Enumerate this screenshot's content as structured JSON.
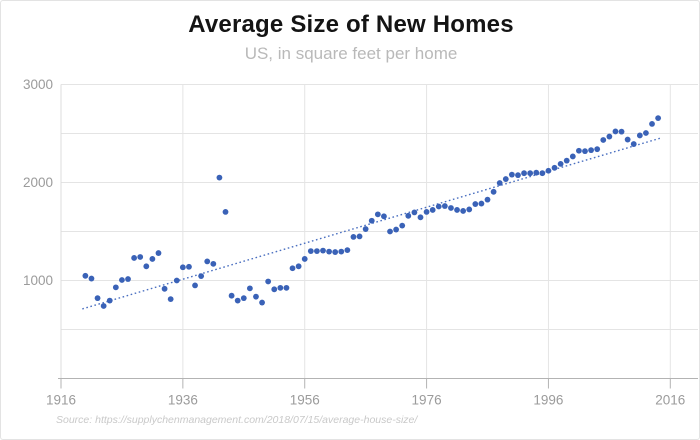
{
  "header": {
    "title": "Average Size of New Homes",
    "subtitle": "US, in square feet per home"
  },
  "footer": {
    "source": "Source: https://supplychenmanagement.com/2018/07/15/average-house-size/"
  },
  "chart_data": {
    "type": "scatter",
    "title": "Average Size of New Homes",
    "subtitle": "US, in square feet per home",
    "xlabel": "",
    "ylabel": "",
    "x_ticks": [
      1916,
      1936,
      1956,
      1976,
      1996,
      2016
    ],
    "y_ticks": [
      1000,
      2000,
      3000
    ],
    "x_range": [
      1916,
      2020.5
    ],
    "y_range": [
      0,
      3000
    ],
    "grid_step_y": 500,
    "grid_on": true,
    "legend": "none",
    "colors": {
      "point": "#3a62b7",
      "trend": "#4a6fc0",
      "grid": "#e4e4e4",
      "axis": "#b3b3b3",
      "tick_label": "#9b9b9b"
    },
    "trendline": {
      "style": "dotted",
      "x1": 1919.5,
      "y1": 710,
      "x2": 2014.5,
      "y2": 2455
    },
    "points": [
      [
        1920,
        1048
      ],
      [
        1921,
        1020
      ],
      [
        1922,
        820
      ],
      [
        1923,
        740
      ],
      [
        1924,
        795
      ],
      [
        1925,
        930
      ],
      [
        1926,
        1005
      ],
      [
        1927,
        1015
      ],
      [
        1928,
        1230
      ],
      [
        1929,
        1240
      ],
      [
        1930,
        1145
      ],
      [
        1931,
        1220
      ],
      [
        1932,
        1280
      ],
      [
        1933,
        915
      ],
      [
        1934,
        810
      ],
      [
        1935,
        1000
      ],
      [
        1936,
        1135
      ],
      [
        1937,
        1140
      ],
      [
        1938,
        950
      ],
      [
        1939,
        1045
      ],
      [
        1940,
        1195
      ],
      [
        1941,
        1170
      ],
      [
        1942,
        2050
      ],
      [
        1943,
        1700
      ],
      [
        1944,
        845
      ],
      [
        1945,
        795
      ],
      [
        1946,
        820
      ],
      [
        1947,
        920
      ],
      [
        1948,
        835
      ],
      [
        1949,
        775
      ],
      [
        1950,
        990
      ],
      [
        1951,
        910
      ],
      [
        1952,
        925
      ],
      [
        1953,
        925
      ],
      [
        1954,
        1125
      ],
      [
        1955,
        1145
      ],
      [
        1956,
        1220
      ],
      [
        1957,
        1300
      ],
      [
        1958,
        1300
      ],
      [
        1959,
        1305
      ],
      [
        1960,
        1295
      ],
      [
        1961,
        1290
      ],
      [
        1962,
        1295
      ],
      [
        1963,
        1310
      ],
      [
        1964,
        1445
      ],
      [
        1965,
        1450
      ],
      [
        1966,
        1525
      ],
      [
        1967,
        1610
      ],
      [
        1968,
        1675
      ],
      [
        1969,
        1655
      ],
      [
        1970,
        1500
      ],
      [
        1971,
        1520
      ],
      [
        1972,
        1560
      ],
      [
        1973,
        1660
      ],
      [
        1974,
        1695
      ],
      [
        1975,
        1645
      ],
      [
        1976,
        1700
      ],
      [
        1977,
        1720
      ],
      [
        1978,
        1755
      ],
      [
        1979,
        1760
      ],
      [
        1980,
        1740
      ],
      [
        1981,
        1720
      ],
      [
        1982,
        1710
      ],
      [
        1983,
        1725
      ],
      [
        1984,
        1780
      ],
      [
        1985,
        1785
      ],
      [
        1986,
        1825
      ],
      [
        1987,
        1905
      ],
      [
        1988,
        1995
      ],
      [
        1989,
        2035
      ],
      [
        1990,
        2080
      ],
      [
        1991,
        2075
      ],
      [
        1992,
        2095
      ],
      [
        1993,
        2095
      ],
      [
        1994,
        2100
      ],
      [
        1995,
        2095
      ],
      [
        1996,
        2120
      ],
      [
        1997,
        2150
      ],
      [
        1998,
        2190
      ],
      [
        1999,
        2223
      ],
      [
        2000,
        2266
      ],
      [
        2001,
        2324
      ],
      [
        2002,
        2320
      ],
      [
        2003,
        2330
      ],
      [
        2004,
        2340
      ],
      [
        2005,
        2434
      ],
      [
        2006,
        2469
      ],
      [
        2007,
        2521
      ],
      [
        2008,
        2519
      ],
      [
        2009,
        2438
      ],
      [
        2010,
        2392
      ],
      [
        2011,
        2480
      ],
      [
        2012,
        2505
      ],
      [
        2013,
        2598
      ],
      [
        2014,
        2657
      ]
    ]
  }
}
